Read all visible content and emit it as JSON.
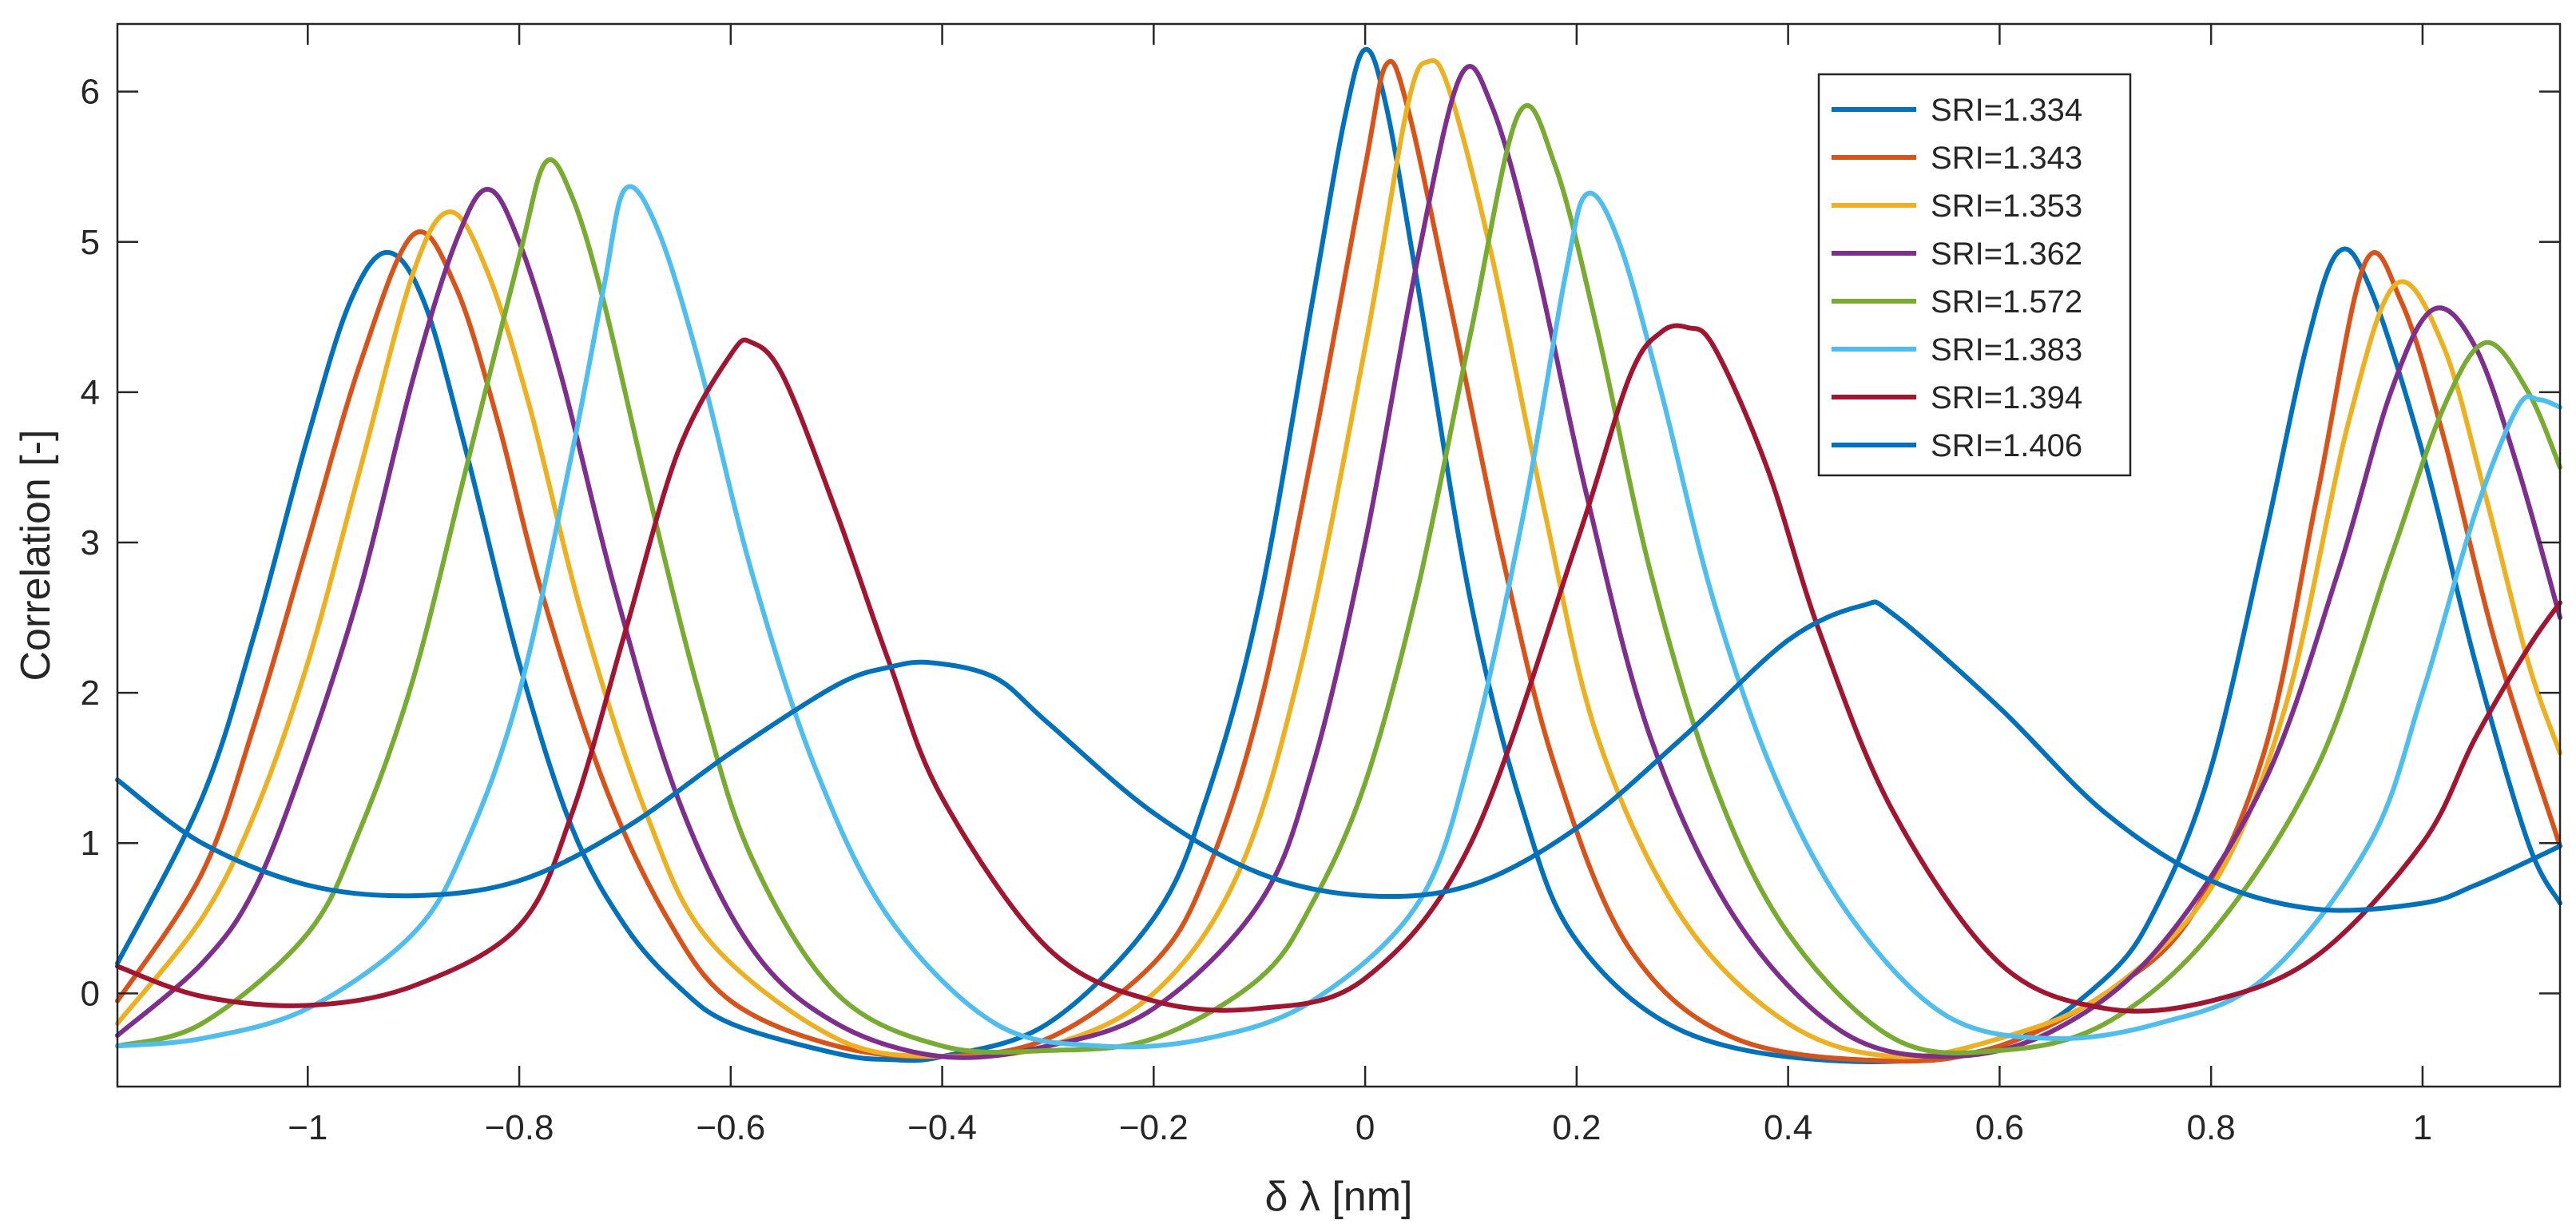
{
  "chart_data": {
    "type": "line",
    "title": "",
    "xlabel": "δ λ [nm]",
    "ylabel": "Correlation [-]",
    "xlim": [
      -1.18,
      1.13
    ],
    "ylim": [
      -0.62,
      6.45
    ],
    "xticks": [
      -1,
      -0.8,
      -0.6,
      -0.4,
      -0.2,
      0,
      0.2,
      0.4,
      0.6,
      0.8,
      1
    ],
    "xtick_labels": [
      "−1",
      "−0.8",
      "−0.6",
      "−0.4",
      "−0.2",
      "0",
      "0.2",
      "0.4",
      "0.6",
      "0.8",
      "1"
    ],
    "yticks": [
      0,
      1,
      2,
      3,
      4,
      5,
      6
    ],
    "ytick_labels": [
      "0",
      "1",
      "2",
      "3",
      "4",
      "5",
      "6"
    ],
    "grid": false,
    "legend_position": "top-right",
    "series": [
      {
        "name": "SRI=1.334",
        "color": "#0072BD",
        "x": [
          -1.18,
          -1.1,
          -1.05,
          -1.0,
          -0.96,
          -0.925,
          -0.89,
          -0.85,
          -0.8,
          -0.75,
          -0.7,
          -0.65,
          -0.6,
          -0.5,
          -0.45,
          -0.4,
          -0.3,
          -0.2,
          -0.15,
          -0.1,
          -0.05,
          -0.02,
          0.0,
          0.02,
          0.05,
          0.1,
          0.15,
          0.2,
          0.3,
          0.45,
          0.6,
          0.7,
          0.75,
          0.8,
          0.85,
          0.89,
          0.92,
          0.95,
          1.0,
          1.05,
          1.1,
          1.13
        ],
        "y": [
          0.2,
          1.3,
          2.4,
          3.7,
          4.6,
          4.93,
          4.6,
          3.6,
          2.2,
          1.1,
          0.45,
          0.05,
          -0.2,
          -0.4,
          -0.44,
          -0.42,
          -0.2,
          0.5,
          1.3,
          2.6,
          4.6,
          5.8,
          6.28,
          5.9,
          4.7,
          2.6,
          1.2,
          0.35,
          -0.25,
          -0.45,
          -0.35,
          0.1,
          0.6,
          1.5,
          3.0,
          4.3,
          4.93,
          4.7,
          3.6,
          2.2,
          1.0,
          0.6
        ]
      },
      {
        "name": "SRI=1.343",
        "color": "#D95319",
        "x": [
          -1.18,
          -1.1,
          -1.05,
          -1.0,
          -0.95,
          -0.9,
          -0.86,
          -0.82,
          -0.78,
          -0.72,
          -0.66,
          -0.6,
          -0.5,
          -0.4,
          -0.3,
          -0.2,
          -0.15,
          -0.1,
          -0.05,
          0.0,
          0.02,
          0.04,
          0.08,
          0.13,
          0.18,
          0.25,
          0.35,
          0.5,
          0.6,
          0.7,
          0.78,
          0.85,
          0.9,
          0.945,
          0.98,
          1.02,
          1.07,
          1.13
        ],
        "y": [
          -0.05,
          0.8,
          1.8,
          3.0,
          4.2,
          5.05,
          4.7,
          3.8,
          2.7,
          1.4,
          0.5,
          -0.05,
          -0.35,
          -0.42,
          -0.3,
          0.2,
          0.8,
          1.9,
          3.6,
          5.5,
          6.18,
          5.9,
          4.6,
          2.9,
          1.5,
          0.3,
          -0.3,
          -0.45,
          -0.35,
          0.0,
          0.5,
          1.6,
          3.3,
          4.85,
          4.6,
          3.7,
          2.3,
          0.98
        ]
      },
      {
        "name": "SRI=1.353",
        "color": "#EDB120",
        "x": [
          -1.18,
          -1.1,
          -1.05,
          -1.0,
          -0.95,
          -0.9,
          -0.865,
          -0.83,
          -0.79,
          -0.74,
          -0.68,
          -0.62,
          -0.5,
          -0.4,
          -0.3,
          -0.2,
          -0.12,
          -0.06,
          0.0,
          0.04,
          0.06,
          0.08,
          0.12,
          0.17,
          0.22,
          0.3,
          0.4,
          0.5,
          0.6,
          0.7,
          0.8,
          0.87,
          0.93,
          0.975,
          1.02,
          1.06,
          1.1,
          1.13
        ],
        "y": [
          -0.2,
          0.5,
          1.2,
          2.2,
          3.5,
          4.8,
          5.2,
          4.8,
          3.9,
          2.5,
          1.2,
          0.35,
          -0.3,
          -0.42,
          -0.35,
          0.0,
          0.8,
          2.2,
          4.3,
          5.9,
          6.2,
          6.0,
          4.9,
          3.2,
          1.7,
          0.5,
          -0.2,
          -0.42,
          -0.3,
          0.0,
          0.7,
          1.9,
          3.8,
          4.72,
          4.3,
          3.3,
          2.2,
          1.6
        ]
      },
      {
        "name": "SRI=1.362",
        "color": "#7E2F8E",
        "x": [
          -1.18,
          -1.1,
          -1.05,
          -1.0,
          -0.95,
          -0.9,
          -0.86,
          -0.83,
          -0.8,
          -0.76,
          -0.71,
          -0.65,
          -0.58,
          -0.5,
          -0.4,
          -0.3,
          -0.2,
          -0.1,
          -0.05,
          0.0,
          0.05,
          0.09,
          0.12,
          0.16,
          0.21,
          0.27,
          0.35,
          0.45,
          0.55,
          0.65,
          0.75,
          0.85,
          0.92,
          0.97,
          1.01,
          1.05,
          1.09,
          1.13
        ],
        "y": [
          -0.28,
          0.2,
          0.7,
          1.6,
          2.7,
          4.1,
          5.0,
          5.35,
          5.0,
          4.1,
          2.7,
          1.3,
          0.3,
          -0.2,
          -0.42,
          -0.35,
          -0.1,
          0.6,
          1.5,
          3.0,
          4.9,
          6.1,
          5.9,
          4.9,
          3.3,
          1.7,
          0.5,
          -0.25,
          -0.42,
          -0.25,
          0.3,
          1.4,
          2.8,
          4.0,
          4.55,
          4.3,
          3.5,
          2.5
        ]
      },
      {
        "name": "SRI=1.572",
        "color": "#77AC30",
        "x": [
          -1.18,
          -1.1,
          -1.0,
          -0.95,
          -0.9,
          -0.85,
          -0.8,
          -0.775,
          -0.75,
          -0.72,
          -0.68,
          -0.63,
          -0.58,
          -0.5,
          -0.4,
          -0.3,
          -0.2,
          -0.1,
          -0.05,
          0.0,
          0.05,
          0.1,
          0.145,
          0.18,
          0.22,
          0.27,
          0.33,
          0.4,
          0.5,
          0.6,
          0.7,
          0.8,
          0.9,
          0.97,
          1.02,
          1.06,
          1.1,
          1.13
        ],
        "y": [
          -0.35,
          -0.2,
          0.4,
          1.1,
          2.1,
          3.5,
          4.9,
          5.53,
          5.3,
          4.6,
          3.4,
          2.0,
          0.9,
          0.0,
          -0.35,
          -0.38,
          -0.3,
          0.1,
          0.6,
          1.4,
          2.7,
          4.4,
          5.85,
          5.5,
          4.4,
          2.8,
          1.4,
          0.4,
          -0.3,
          -0.38,
          -0.2,
          0.4,
          1.5,
          2.9,
          3.9,
          4.33,
          4.0,
          3.5
        ]
      },
      {
        "name": "SRI=1.383",
        "color": "#4DBEEE",
        "x": [
          -1.18,
          -1.1,
          -1.0,
          -0.9,
          -0.85,
          -0.8,
          -0.75,
          -0.72,
          -0.7,
          -0.67,
          -0.63,
          -0.58,
          -0.52,
          -0.45,
          -0.35,
          -0.25,
          -0.15,
          -0.05,
          0.05,
          0.1,
          0.15,
          0.19,
          0.21,
          0.24,
          0.28,
          0.33,
          0.39,
          0.46,
          0.55,
          0.65,
          0.75,
          0.85,
          0.95,
          1.0,
          1.05,
          1.09,
          1.11,
          1.13
        ],
        "y": [
          -0.35,
          -0.3,
          -0.1,
          0.4,
          1.0,
          2.0,
          3.6,
          4.7,
          5.35,
          5.1,
          4.2,
          2.8,
          1.5,
          0.5,
          -0.2,
          -0.35,
          -0.3,
          -0.05,
          0.6,
          1.6,
          3.2,
          4.8,
          5.32,
          5.0,
          4.0,
          2.6,
          1.4,
          0.5,
          -0.15,
          -0.3,
          -0.2,
          0.1,
          1.0,
          2.0,
          3.2,
          3.9,
          3.95,
          3.9
        ]
      },
      {
        "name": "SRI=1.394",
        "color": "#A2142F",
        "x": [
          -1.18,
          -1.1,
          -1.0,
          -0.9,
          -0.8,
          -0.75,
          -0.7,
          -0.65,
          -0.6,
          -0.58,
          -0.55,
          -0.5,
          -0.45,
          -0.4,
          -0.3,
          -0.2,
          -0.1,
          0.0,
          0.1,
          0.2,
          0.25,
          0.28,
          0.305,
          0.33,
          0.38,
          0.43,
          0.5,
          0.6,
          0.7,
          0.8,
          0.9,
          1.0,
          1.05,
          1.1,
          1.13
        ],
        "y": [
          0.18,
          -0.02,
          -0.08,
          0.05,
          0.45,
          1.2,
          2.4,
          3.6,
          4.25,
          4.33,
          4.1,
          3.2,
          2.2,
          1.3,
          0.3,
          -0.05,
          -0.1,
          0.1,
          1.0,
          3.0,
          4.1,
          4.4,
          4.43,
          4.3,
          3.5,
          2.4,
          1.2,
          0.2,
          -0.1,
          -0.05,
          0.25,
          1.0,
          1.7,
          2.3,
          2.6
        ]
      },
      {
        "name": "SRI=1.406",
        "color": "#0072BD",
        "x": [
          -1.18,
          -1.1,
          -1.0,
          -0.9,
          -0.8,
          -0.7,
          -0.6,
          -0.5,
          -0.45,
          -0.41,
          -0.35,
          -0.3,
          -0.2,
          -0.1,
          0.0,
          0.1,
          0.2,
          0.3,
          0.4,
          0.47,
          0.5,
          0.6,
          0.7,
          0.8,
          0.9,
          1.0,
          1.05,
          1.1,
          1.13
        ],
        "y": [
          1.42,
          1.0,
          0.72,
          0.65,
          0.75,
          1.1,
          1.6,
          2.05,
          2.17,
          2.2,
          2.1,
          1.8,
          1.2,
          0.8,
          0.65,
          0.72,
          1.1,
          1.7,
          2.35,
          2.58,
          2.52,
          1.9,
          1.2,
          0.75,
          0.56,
          0.6,
          0.72,
          0.88,
          0.98
        ]
      }
    ]
  }
}
